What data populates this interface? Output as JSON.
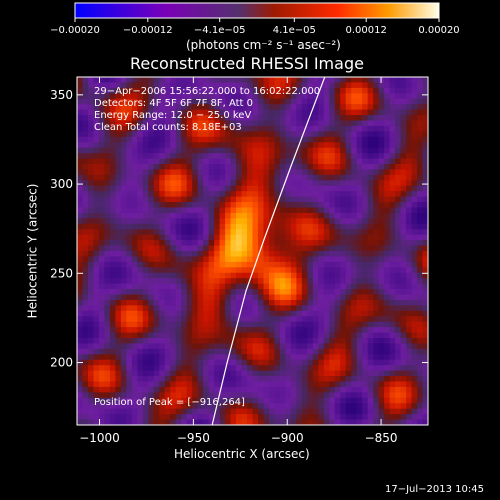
{
  "chart_data": {
    "type": "heatmap",
    "title": "Reconstructed RHESSI Image",
    "xlabel": "Heliocentric X (arcsec)",
    "ylabel": "Heliocentric Y (arcsec)",
    "xlim": [
      -1012,
      -825
    ],
    "ylim": [
      165,
      360
    ],
    "x_ticks": [
      {
        "value": -1000,
        "label": "−1000"
      },
      {
        "value": -950,
        "label": "−950"
      },
      {
        "value": -900,
        "label": "−900"
      },
      {
        "value": -850,
        "label": "−850"
      }
    ],
    "y_ticks": [
      {
        "value": 200,
        "label": "200"
      },
      {
        "value": 250,
        "label": "250"
      },
      {
        "value": 300,
        "label": "300"
      },
      {
        "value": 350,
        "label": "350"
      }
    ],
    "colorbar": {
      "range": [
        -0.0002,
        0.0002
      ],
      "unit_label": "(photons cm⁻² s⁻¹ asec⁻²)",
      "ticks": [
        {
          "value": -0.0002,
          "label": "−0.00020"
        },
        {
          "value": -0.00012,
          "label": "−0.00012"
        },
        {
          "value": -4.1e-05,
          "label": "−4.1e−05"
        },
        {
          "value": 4.1e-05,
          "label": "4.1e−05"
        },
        {
          "value": 0.00012,
          "label": "0.00012"
        },
        {
          "value": 0.0002,
          "label": "0.00020"
        }
      ]
    },
    "annotations": [
      "29−Apr−2006 15:56:22.000 to 16:02:22.000",
      "Detectors: 4F 5F 6F 7F 8F, Att 0",
      "Energy Range: 12.0 − 25.0 keV",
      "Clean     Total counts: 8.18E+03"
    ],
    "peak_label": "Position of Peak = [−916,264]",
    "peak": [
      -916,
      264
    ],
    "limb_curve": [
      [
        -940,
        165
      ],
      [
        -932,
        200
      ],
      [
        -922,
        240
      ],
      [
        -912,
        270
      ],
      [
        -898,
        310
      ],
      [
        -880,
        360
      ]
    ]
  },
  "footer": {
    "timestamp": "17−Jul−2013 10:45"
  }
}
